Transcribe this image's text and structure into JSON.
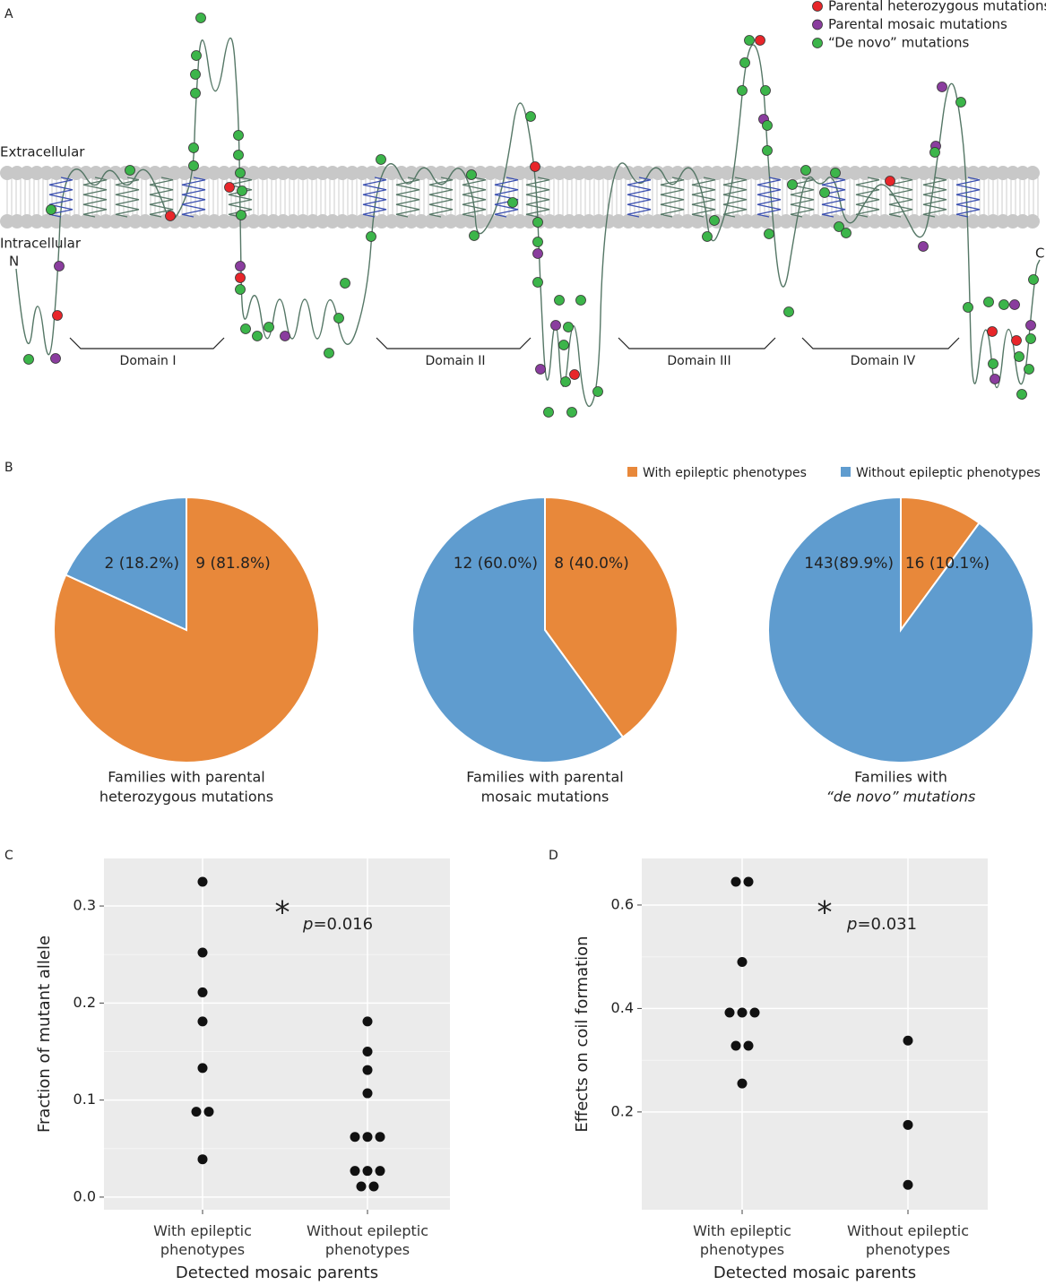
{
  "panel_a": {
    "label": "A",
    "legend": [
      {
        "name": "Parental heterozygous mutations",
        "color": "#e8262a"
      },
      {
        "name": "Parental mosaic mutations",
        "color": "#8a3d9e"
      },
      {
        "name": "“De novo” mutations",
        "color": "#3cb54a"
      }
    ],
    "extracellular": "Extracellular",
    "intracellular": "Intracellular",
    "n_term": "N",
    "c_term": "C",
    "domains": [
      "Domain I",
      "Domain II",
      "Domain III",
      "Domain IV"
    ]
  },
  "panel_labels": [
    "B",
    "C",
    "D"
  ],
  "chart_data": [
    {
      "type": "pie",
      "caption": [
        "Families with parental",
        "heterozygous mutations"
      ],
      "categories": [
        "With epileptic phenotypes",
        "Without epileptic phenotypes"
      ],
      "values": [
        9,
        2
      ],
      "value_labels": [
        "9 (81.8%)",
        "2 (18.2%)"
      ],
      "colors": [
        "#e8883a",
        "#5f9ccf"
      ]
    },
    {
      "type": "pie",
      "caption": [
        "Families with parental",
        "mosaic mutations"
      ],
      "categories": [
        "With epileptic phenotypes",
        "Without epileptic phenotypes"
      ],
      "values": [
        8,
        12
      ],
      "value_labels": [
        "8 (40.0%)",
        "12 (60.0%)"
      ],
      "colors": [
        "#e8883a",
        "#5f9ccf"
      ]
    },
    {
      "type": "pie",
      "caption": [
        "Families with",
        "“de novo” mutations"
      ],
      "categories": [
        "With epileptic phenotypes",
        "Without epileptic phenotypes"
      ],
      "values": [
        16,
        143
      ],
      "value_labels": [
        "16 (10.1%)",
        "143(89.9%)"
      ],
      "colors": [
        "#e8883a",
        "#5f9ccf"
      ]
    },
    {
      "type": "dot",
      "x_label": "Detected mosaic parents",
      "y_label": "Fraction of mutant allele",
      "categories": [
        "With epileptic phenotypes",
        "Without epileptic phenotypes"
      ],
      "groups": [
        [
          0.325,
          0.252,
          0.211,
          0.181,
          0.133,
          0.088,
          0.088,
          0.039
        ],
        [
          0.181,
          0.15,
          0.131,
          0.107,
          0.062,
          0.062,
          0.062,
          0.027,
          0.027,
          0.027,
          0.011,
          0.011
        ]
      ],
      "ylim": [
        -0.013,
        0.349
      ],
      "yticks": [
        {
          "value": 0,
          "label": "0.0"
        },
        0.1,
        0.2,
        0.3
      ],
      "annotation": {
        "symbol": "*",
        "p": "p",
        "text": "=0.016"
      },
      "color": "#111111",
      "grid": true
    },
    {
      "type": "dot",
      "x_label": "Detected mosaic parents",
      "y_label": "Effects on coil formation",
      "categories": [
        "With epileptic phenotypes",
        "Without epileptic phenotypes"
      ],
      "groups": [
        [
          0.645,
          0.645,
          0.49,
          0.392,
          0.392,
          0.392,
          0.328,
          0.328,
          0.255
        ],
        [
          0.338,
          0.175,
          0.059
        ]
      ],
      "ylim": [
        0.011,
        0.69
      ],
      "yticks": [
        0.2,
        0.4,
        0.6
      ],
      "annotation": {
        "symbol": "*",
        "p": "p",
        "text": "=0.031"
      },
      "color": "#111111",
      "grid": true
    }
  ]
}
